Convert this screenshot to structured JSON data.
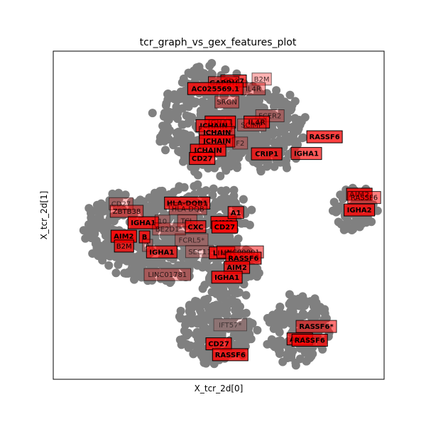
{
  "chart_data": {
    "type": "scatter",
    "title": "tcr_graph_vs_gex_features_plot",
    "xlabel": "X_tcr_2d[0]",
    "ylabel": "X_tcr_2d[1]",
    "xlim": [
      0,
      100
    ],
    "ylim": [
      0,
      100
    ],
    "grid": false,
    "ticks_shown": false,
    "point_color": "#808080",
    "label_box_color": "#ff0000",
    "clusters": [
      {
        "cx": 48,
        "cy": 79,
        "rx": 16,
        "ry": 16
      },
      {
        "cx": 65,
        "cy": 76,
        "rx": 11,
        "ry": 12
      },
      {
        "cx": 42,
        "cy": 50,
        "rx": 17,
        "ry": 9
      },
      {
        "cx": 20,
        "cy": 46,
        "rx": 11,
        "ry": 10
      },
      {
        "cx": 31,
        "cy": 36,
        "rx": 13,
        "ry": 7
      },
      {
        "cx": 53,
        "cy": 34,
        "rx": 9,
        "ry": 9
      },
      {
        "cx": 49,
        "cy": 15,
        "rx": 12,
        "ry": 10
      },
      {
        "cx": 74,
        "cy": 15,
        "rx": 9,
        "ry": 11
      },
      {
        "cx": 91,
        "cy": 52,
        "rx": 7,
        "ry": 7
      }
    ],
    "labels": [
      {
        "text": "CD27",
        "x": 54.5,
        "y": 90.9,
        "alpha": 0.7,
        "bold": true
      },
      {
        "text": "GAPDH",
        "x": 51.5,
        "y": 90.4,
        "alpha": 0.55,
        "bold": true
      },
      {
        "text": "B2M",
        "x": 63,
        "y": 91.5,
        "alpha": 0.3,
        "bold": false
      },
      {
        "text": "IL4R",
        "x": 60.5,
        "y": 88.5,
        "alpha": 0.35,
        "bold": false
      },
      {
        "text": "AC025569.1",
        "x": 49,
        "y": 88.6,
        "alpha": 0.8,
        "bold": true
      },
      {
        "text": "SRGN",
        "x": 52.5,
        "y": 84.5,
        "alpha": 0.35,
        "bold": false
      },
      {
        "text": "FCER2",
        "x": 65.5,
        "y": 80.3,
        "alpha": 0.25,
        "bold": false
      },
      {
        "text": "IL4R",
        "x": 61.5,
        "y": 78.4,
        "alpha": 0.75,
        "bold": true
      },
      {
        "text": "SCIMP",
        "x": 60,
        "y": 77.5,
        "alpha": 0.25,
        "bold": false
      },
      {
        "text": "IGHA1",
        "x": 50.5,
        "y": 78.4,
        "alpha": 0.85,
        "bold": true
      },
      {
        "text": "JCHAIN",
        "x": 48.5,
        "y": 77.3,
        "alpha": 0.7,
        "bold": true
      },
      {
        "text": "JCHAIN",
        "x": 49.5,
        "y": 75.2,
        "alpha": 0.6,
        "bold": true
      },
      {
        "text": "JCHAIN",
        "x": 49.5,
        "y": 72.6,
        "alpha": 0.8,
        "bold": true
      },
      {
        "text": "F2",
        "x": 56.5,
        "y": 72,
        "alpha": 0.25,
        "bold": false
      },
      {
        "text": "JCHAIN",
        "x": 46.8,
        "y": 69.8,
        "alpha": 0.8,
        "bold": true
      },
      {
        "text": "CD27",
        "x": 45,
        "y": 67.3,
        "alpha": 0.8,
        "bold": true
      },
      {
        "text": "CRIP1",
        "x": 64.5,
        "y": 68.7,
        "alpha": 0.75,
        "bold": true
      },
      {
        "text": "IGHA1",
        "x": 76.5,
        "y": 68.8,
        "alpha": 0.65,
        "bold": true
      },
      {
        "text": "RASSF6",
        "x": 82,
        "y": 73.9,
        "alpha": 0.75,
        "bold": true
      },
      {
        "text": "AIM2",
        "x": 92.5,
        "y": 56.4,
        "alpha": 0.8,
        "bold": true
      },
      {
        "text": "RASSF6",
        "x": 94,
        "y": 55.4,
        "alpha": 0.5,
        "bold": false
      },
      {
        "text": "IGHA2",
        "x": 92.5,
        "y": 51.6,
        "alpha": 0.8,
        "bold": true
      },
      {
        "text": "HLA-DQB1",
        "x": 40.5,
        "y": 53.7,
        "alpha": 0.75,
        "bold": true
      },
      {
        "text": "HLA-DQB",
        "x": 40.7,
        "y": 52,
        "alpha": 0.3,
        "bold": false
      },
      {
        "text": "TCL",
        "x": 40.5,
        "y": 48.3,
        "alpha": 0.3,
        "bold": false
      },
      {
        "text": "AIM2",
        "x": 51.5,
        "y": 47.8,
        "alpha": 0.85,
        "bold": true
      },
      {
        "text": "A1",
        "x": 55.2,
        "y": 50.8,
        "alpha": 0.7,
        "bold": true
      },
      {
        "text": "CXC",
        "x": 43,
        "y": 46.5,
        "alpha": 0.7,
        "bold": true
      },
      {
        "text": "CD27",
        "x": 51.8,
        "y": 46.4,
        "alpha": 0.9,
        "bold": true
      },
      {
        "text": "FCRL5*",
        "x": 41.8,
        "y": 42.5,
        "alpha": 0.2,
        "bold": false
      },
      {
        "text": "SEC11",
        "x": 44.3,
        "y": 38.9,
        "alpha": 0.2,
        "bold": false
      },
      {
        "text": "LINC",
        "x": 51,
        "y": 38.5,
        "alpha": 0.8,
        "bold": true
      },
      {
        "text": "LINC00001",
        "x": 56.5,
        "y": 38.8,
        "alpha": 0.5,
        "bold": false
      },
      {
        "text": "RASSF6",
        "x": 57.5,
        "y": 36.9,
        "alpha": 0.75,
        "bold": true
      },
      {
        "text": "AIM2",
        "x": 55.5,
        "y": 34.1,
        "alpha": 0.7,
        "bold": true
      },
      {
        "text": "IGHA1",
        "x": 52.5,
        "y": 31.1,
        "alpha": 0.8,
        "bold": true
      },
      {
        "text": "CD27",
        "x": 20.5,
        "y": 53.5,
        "alpha": 0.25,
        "bold": false
      },
      {
        "text": "ZBTB38",
        "x": 22.2,
        "y": 51.2,
        "alpha": 0.45,
        "bold": false
      },
      {
        "text": "IGHA1",
        "x": 27.2,
        "y": 47.7,
        "alpha": 0.8,
        "bold": true
      },
      {
        "text": "10",
        "x": 33,
        "y": 48.2,
        "alpha": 0.2,
        "bold": false
      },
      {
        "text": "BE2D1*",
        "x": 35,
        "y": 45.8,
        "alpha": 0.25,
        "bold": false
      },
      {
        "text": "AIM2",
        "x": 21.3,
        "y": 43.6,
        "alpha": 0.9,
        "bold": true
      },
      {
        "text": "B",
        "x": 27.6,
        "y": 43.4,
        "alpha": 0.8,
        "bold": true
      },
      {
        "text": "B2M",
        "x": 21.4,
        "y": 40.6,
        "alpha": 0.75,
        "bold": false
      },
      {
        "text": "A",
        "x": 28.5,
        "y": 40.8,
        "alpha": 0.2,
        "bold": false
      },
      {
        "text": "IGHA1",
        "x": 32.8,
        "y": 38.8,
        "alpha": 0.7,
        "bold": true
      },
      {
        "text": "LINC01781",
        "x": 34.5,
        "y": 31.9,
        "alpha": 0.3,
        "bold": false
      },
      {
        "text": "IFT57*",
        "x": 53.5,
        "y": 16.6,
        "alpha": 0.1,
        "bold": false
      },
      {
        "text": "CD27",
        "x": 50,
        "y": 10.8,
        "alpha": 0.8,
        "bold": true
      },
      {
        "text": "RASSF6",
        "x": 53.5,
        "y": 7.5,
        "alpha": 0.8,
        "bold": true
      },
      {
        "text": "RASSF6*",
        "x": 79.5,
        "y": 16.1,
        "alpha": 0.55,
        "bold": true
      },
      {
        "text": "AIM2",
        "x": 74.5,
        "y": 12.3,
        "alpha": 0.7,
        "bold": true
      },
      {
        "text": "RASSF6",
        "x": 77.5,
        "y": 11.9,
        "alpha": 0.75,
        "bold": true
      }
    ]
  }
}
